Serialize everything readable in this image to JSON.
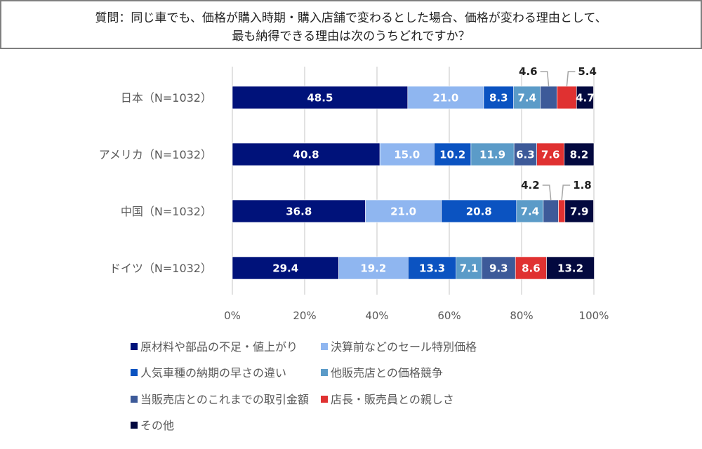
{
  "title": {
    "line1": "質問：同じ車でも、価格が購入時期・購入店舗で変わるとした場合、価格が変わる理由として、",
    "line2": "最も納得できる理由は次のうちどれですか？"
  },
  "chart_data": {
    "type": "bar",
    "orientation": "horizontal",
    "stacked": true,
    "title": "質問：同じ車でも、価格が購入時期・購入店舗で変わるとした場合、価格が変わる理由として、最も納得できる理由は次のうちどれですか？",
    "categories": [
      "日本（N=1032）",
      "アメリカ（N=1032）",
      "中国（N=1032）",
      "ドイツ（N=1032）"
    ],
    "xlim": [
      0,
      100
    ],
    "x_ticks": [
      "0%",
      "20%",
      "40%",
      "60%",
      "80%",
      "100%"
    ],
    "grid": true,
    "legend_position": "bottom",
    "series": [
      {
        "name": "原材料や部品の不足・値上がり",
        "color": "#00127a",
        "values": [
          48.5,
          40.8,
          36.8,
          29.4
        ],
        "labels": [
          "48.5",
          "40.8",
          "36.8",
          "29.4"
        ]
      },
      {
        "name": "決算前などのセール特別価格",
        "color": "#8fb6f0",
        "values": [
          21.0,
          15.0,
          21.0,
          19.2
        ],
        "labels": [
          "21.0",
          "15.0",
          "21.0",
          "19.2"
        ]
      },
      {
        "name": "人気車種の納期の早さの違い",
        "color": "#0b53c1",
        "values": [
          8.3,
          10.2,
          20.8,
          13.3
        ],
        "labels": [
          "8.3",
          "10.2",
          "20.8",
          "13.3"
        ]
      },
      {
        "name": "他販売店との価格競争",
        "color": "#5b9bc8",
        "values": [
          7.4,
          11.9,
          7.4,
          7.1
        ],
        "labels": [
          "7.4",
          "11.9",
          "7.4",
          "7.1"
        ]
      },
      {
        "name": "当販売店とのこれまでの取引金額",
        "color": "#3d5a99",
        "values": [
          4.6,
          6.3,
          4.2,
          9.3
        ],
        "labels": [
          "4.6",
          "6.3",
          "4.2",
          "9.3"
        ]
      },
      {
        "name": "店長・販売員との親しさ",
        "color": "#e03131",
        "values": [
          5.4,
          7.6,
          1.8,
          8.6
        ],
        "labels": [
          "5.4",
          "7.6",
          "1.8",
          "8.6"
        ]
      },
      {
        "name": "その他",
        "color": "#03093f",
        "values": [
          4.7,
          8.2,
          7.9,
          13.2
        ],
        "labels": [
          "4.7",
          "8.2",
          "7.9",
          "13.2"
        ]
      }
    ],
    "external_labels": [
      {
        "category": 0,
        "series": 4
      },
      {
        "category": 0,
        "series": 5
      },
      {
        "category": 2,
        "series": 4
      },
      {
        "category": 2,
        "series": 5
      }
    ]
  }
}
